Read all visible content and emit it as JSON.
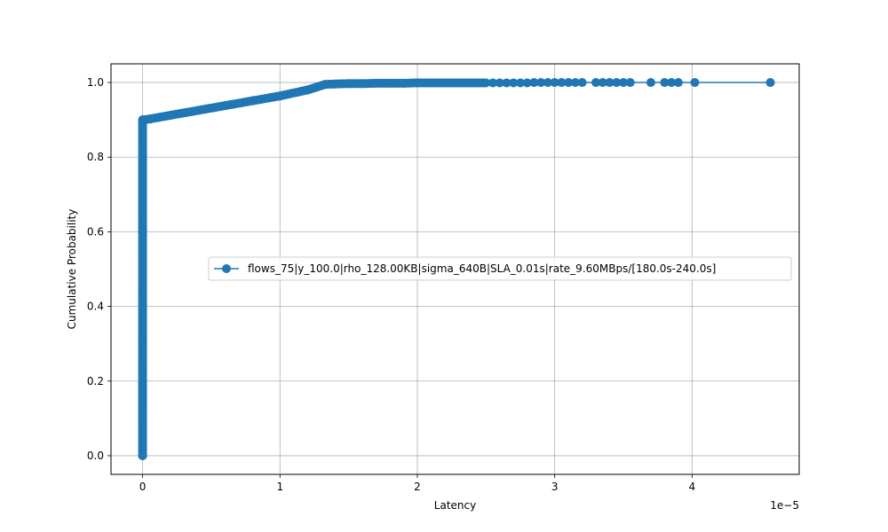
{
  "chart_data": {
    "type": "line",
    "title": "",
    "xlabel": "Latency",
    "ylabel": "Cumulative Probability",
    "x_scale_factor_label": "1e−5",
    "xlim": [
      -0.23,
      4.78
    ],
    "ylim": [
      -0.05,
      1.05
    ],
    "x_unit_multiplier": 1e-05,
    "xticks": [
      0,
      1,
      2,
      3,
      4
    ],
    "yticks": [
      0.0,
      0.2,
      0.4,
      0.6,
      0.8,
      1.0
    ],
    "xtick_labels": [
      "0",
      "1",
      "2",
      "3",
      "4"
    ],
    "ytick_labels": [
      "0.0",
      "0.2",
      "0.4",
      "0.6",
      "0.8",
      "1.0"
    ],
    "grid": true,
    "legend_position": "center-right",
    "colors": {
      "series": "#1f77b4",
      "grid": "#b0b0b0",
      "axis": "#000000"
    },
    "series": [
      {
        "name": "flows_75|y_100.0|rho_128.00KB|sigma_640B|SLA_0.01s|rate_9.60MBps/[180.0s-240.0s]",
        "marker": "circle",
        "segments_note": "",
        "x": [
          0,
          0,
          0,
          0,
          0.05,
          0.2,
          0.4,
          0.6,
          0.8,
          1.0,
          1.2,
          1.33,
          1.4,
          1.5,
          1.6,
          1.7,
          1.8,
          1.9,
          2.0,
          2.1,
          2.2,
          2.3,
          2.4,
          2.5,
          2.55,
          2.6,
          2.65,
          2.7,
          2.75,
          2.8,
          2.85,
          2.9,
          2.95,
          3.0,
          3.05,
          3.1,
          3.15,
          3.2,
          3.3,
          3.35,
          3.4,
          3.45,
          3.5,
          3.55,
          3.7,
          3.8,
          3.85,
          3.9,
          4.02,
          4.57
        ],
        "y": [
          0.0,
          0.3,
          0.6,
          0.9,
          0.902,
          0.912,
          0.925,
          0.938,
          0.951,
          0.964,
          0.98,
          0.995,
          0.996,
          0.997,
          0.997,
          0.998,
          0.998,
          0.998,
          0.999,
          0.999,
          0.999,
          0.999,
          0.999,
          0.999,
          0.999,
          0.999,
          0.999,
          0.999,
          0.999,
          0.999,
          1.0,
          1.0,
          1.0,
          1.0,
          1.0,
          1.0,
          1.0,
          1.0,
          1.0,
          1.0,
          1.0,
          1.0,
          1.0,
          1.0,
          1.0,
          1.0,
          1.0,
          1.0,
          1.0,
          1.0
        ]
      }
    ]
  }
}
